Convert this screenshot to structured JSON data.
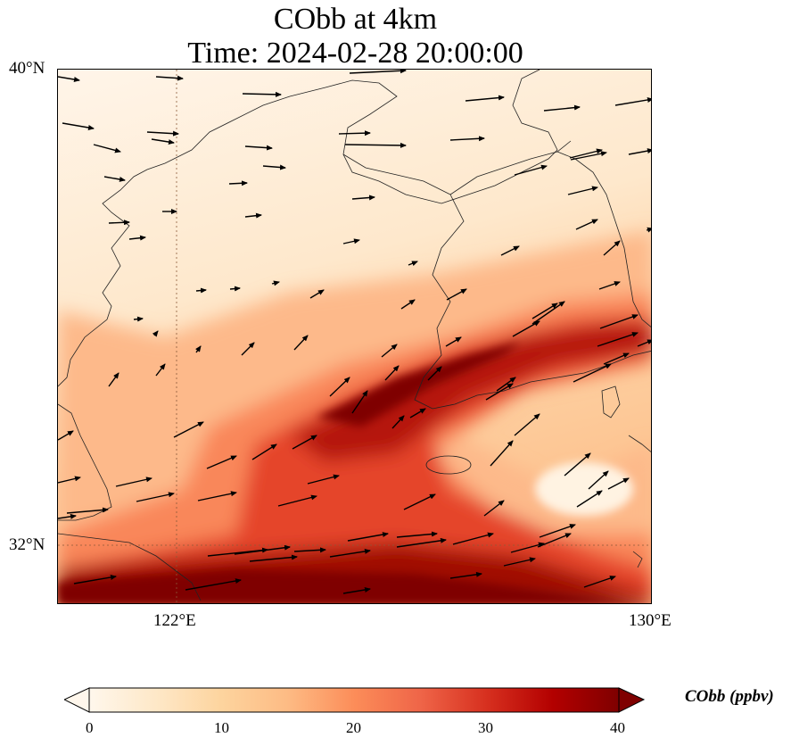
{
  "title": {
    "line1": "CObb at 4km",
    "line2": "Time: 2024-02-28 20:00:00"
  },
  "axes": {
    "lat_labels": [
      "40°N",
      "32°N"
    ],
    "lon_labels": [
      "122°E",
      "130°E"
    ],
    "lat_range": [
      31.0,
      40.0
    ],
    "lon_range": [
      120.0,
      130.0
    ],
    "gridlines": "dotted, at 122°E and 32°N"
  },
  "colorbar": {
    "label": "CObb (ppbv)",
    "ticks": [
      "0",
      "10",
      "20",
      "30",
      "40"
    ],
    "range": [
      0,
      40
    ],
    "extend": "both",
    "colormap": "OrRd",
    "colors": [
      "#fff7ec",
      "#fee8c8",
      "#fdd49e",
      "#fdbb84",
      "#fc8d59",
      "#ef6548",
      "#d7301f",
      "#b30000",
      "#7f0000"
    ]
  },
  "map": {
    "field": "CObb",
    "level": "4km",
    "units": "ppbv",
    "vectors": "wind arrows, predominantly westerly / south-westerly",
    "features": "coastlines of East China, Korean Peninsula, Jeju Island, Shandong Peninsula"
  }
}
